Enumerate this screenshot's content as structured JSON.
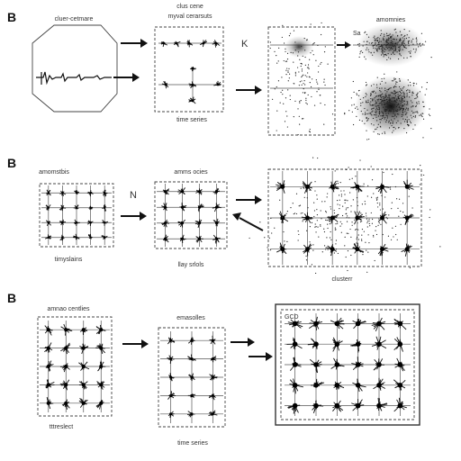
{
  "rows": [
    {
      "letter": "B",
      "labels": {
        "panel1": "cluer-cetmare",
        "panel2_top": "clus cene",
        "panel2_sub": "myval cerarsuts",
        "panel2_bottom": "time series",
        "mid_glyph": "K",
        "panel4_tag": "Sa",
        "panel4_top": "amomnies"
      }
    },
    {
      "letter": "B",
      "labels": {
        "panel1_top": "amomstbis",
        "panel1_bottom": "timyslains",
        "mid_glyph": "N",
        "panel2_top": "amms ocies",
        "panel2_bottom": "llay srlols",
        "panel3_bottom": "clusterr"
      }
    },
    {
      "letter": "B",
      "labels": {
        "panel1_top": "amnao centlies",
        "panel1_bottom": "tttreslect",
        "panel2_top": "emasolles",
        "panel2_bottom": "time series",
        "panel3_tag": "GCD"
      }
    }
  ],
  "colors": {
    "ink": "#111111",
    "frame": "#444444"
  }
}
